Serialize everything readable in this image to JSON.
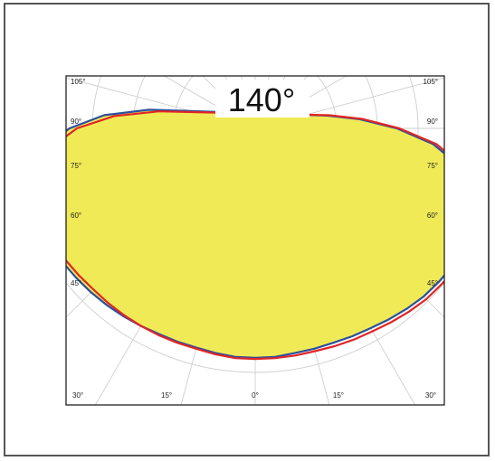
{
  "chart_data": {
    "type": "polar",
    "title": "140°",
    "angle_labels_left": [
      "105°",
      "90°",
      "75°",
      "60°",
      "45°",
      "30°",
      "15°"
    ],
    "angle_labels_right": [
      "105°",
      "90°",
      "75°",
      "60°",
      "45°",
      "30°",
      "15°"
    ],
    "angle_label_center": "0°",
    "radial_grid_lines": 6,
    "angular_grid_step_deg": 15,
    "grid": true,
    "beam_angle_deg": 140,
    "series": [
      {
        "color": "#2a4f9c",
        "fill": "#f0ea57",
        "angles_deg": [
          -100,
          -95,
          -90,
          -85,
          -80,
          -75,
          -70,
          -65,
          -60,
          -55,
          -50,
          -45,
          -40,
          -35,
          -30,
          -25,
          -20,
          -15,
          -10,
          -5,
          0,
          5,
          10,
          15,
          20,
          25,
          30,
          35,
          40,
          45,
          50,
          55,
          60,
          65,
          70,
          75,
          80,
          85,
          90,
          95,
          100
        ],
        "values": [
          0.44,
          0.62,
          0.76,
          0.86,
          0.92,
          0.95,
          0.96,
          0.965,
          0.965,
          0.96,
          0.955,
          0.95,
          0.945,
          0.94,
          0.935,
          0.93,
          0.93,
          0.93,
          0.935,
          0.94,
          0.94,
          0.94,
          0.935,
          0.935,
          0.935,
          0.94,
          0.945,
          0.955,
          0.965,
          0.975,
          0.98,
          0.985,
          0.985,
          0.975,
          0.95,
          0.91,
          0.84,
          0.73,
          0.58,
          0.43,
          0.3
        ]
      },
      {
        "color": "#e02626",
        "angles_deg": [
          -100,
          -95,
          -90,
          -85,
          -80,
          -75,
          -70,
          -65,
          -60,
          -55,
          -50,
          -45,
          -40,
          -35,
          -30,
          -25,
          -20,
          -15,
          -10,
          -5,
          0,
          5,
          10,
          15,
          20,
          25,
          30,
          35,
          40,
          45,
          50,
          55,
          60,
          65,
          70,
          75,
          80,
          85,
          90,
          95,
          100
        ],
        "values": [
          0.4,
          0.58,
          0.73,
          0.83,
          0.9,
          0.93,
          0.94,
          0.945,
          0.945,
          0.945,
          0.94,
          0.935,
          0.935,
          0.935,
          0.935,
          0.935,
          0.935,
          0.935,
          0.94,
          0.945,
          0.945,
          0.945,
          0.945,
          0.945,
          0.95,
          0.955,
          0.96,
          0.97,
          0.98,
          0.99,
          0.995,
          1.0,
          1.0,
          0.99,
          0.965,
          0.925,
          0.855,
          0.745,
          0.59,
          0.44,
          0.31
        ]
      }
    ]
  }
}
